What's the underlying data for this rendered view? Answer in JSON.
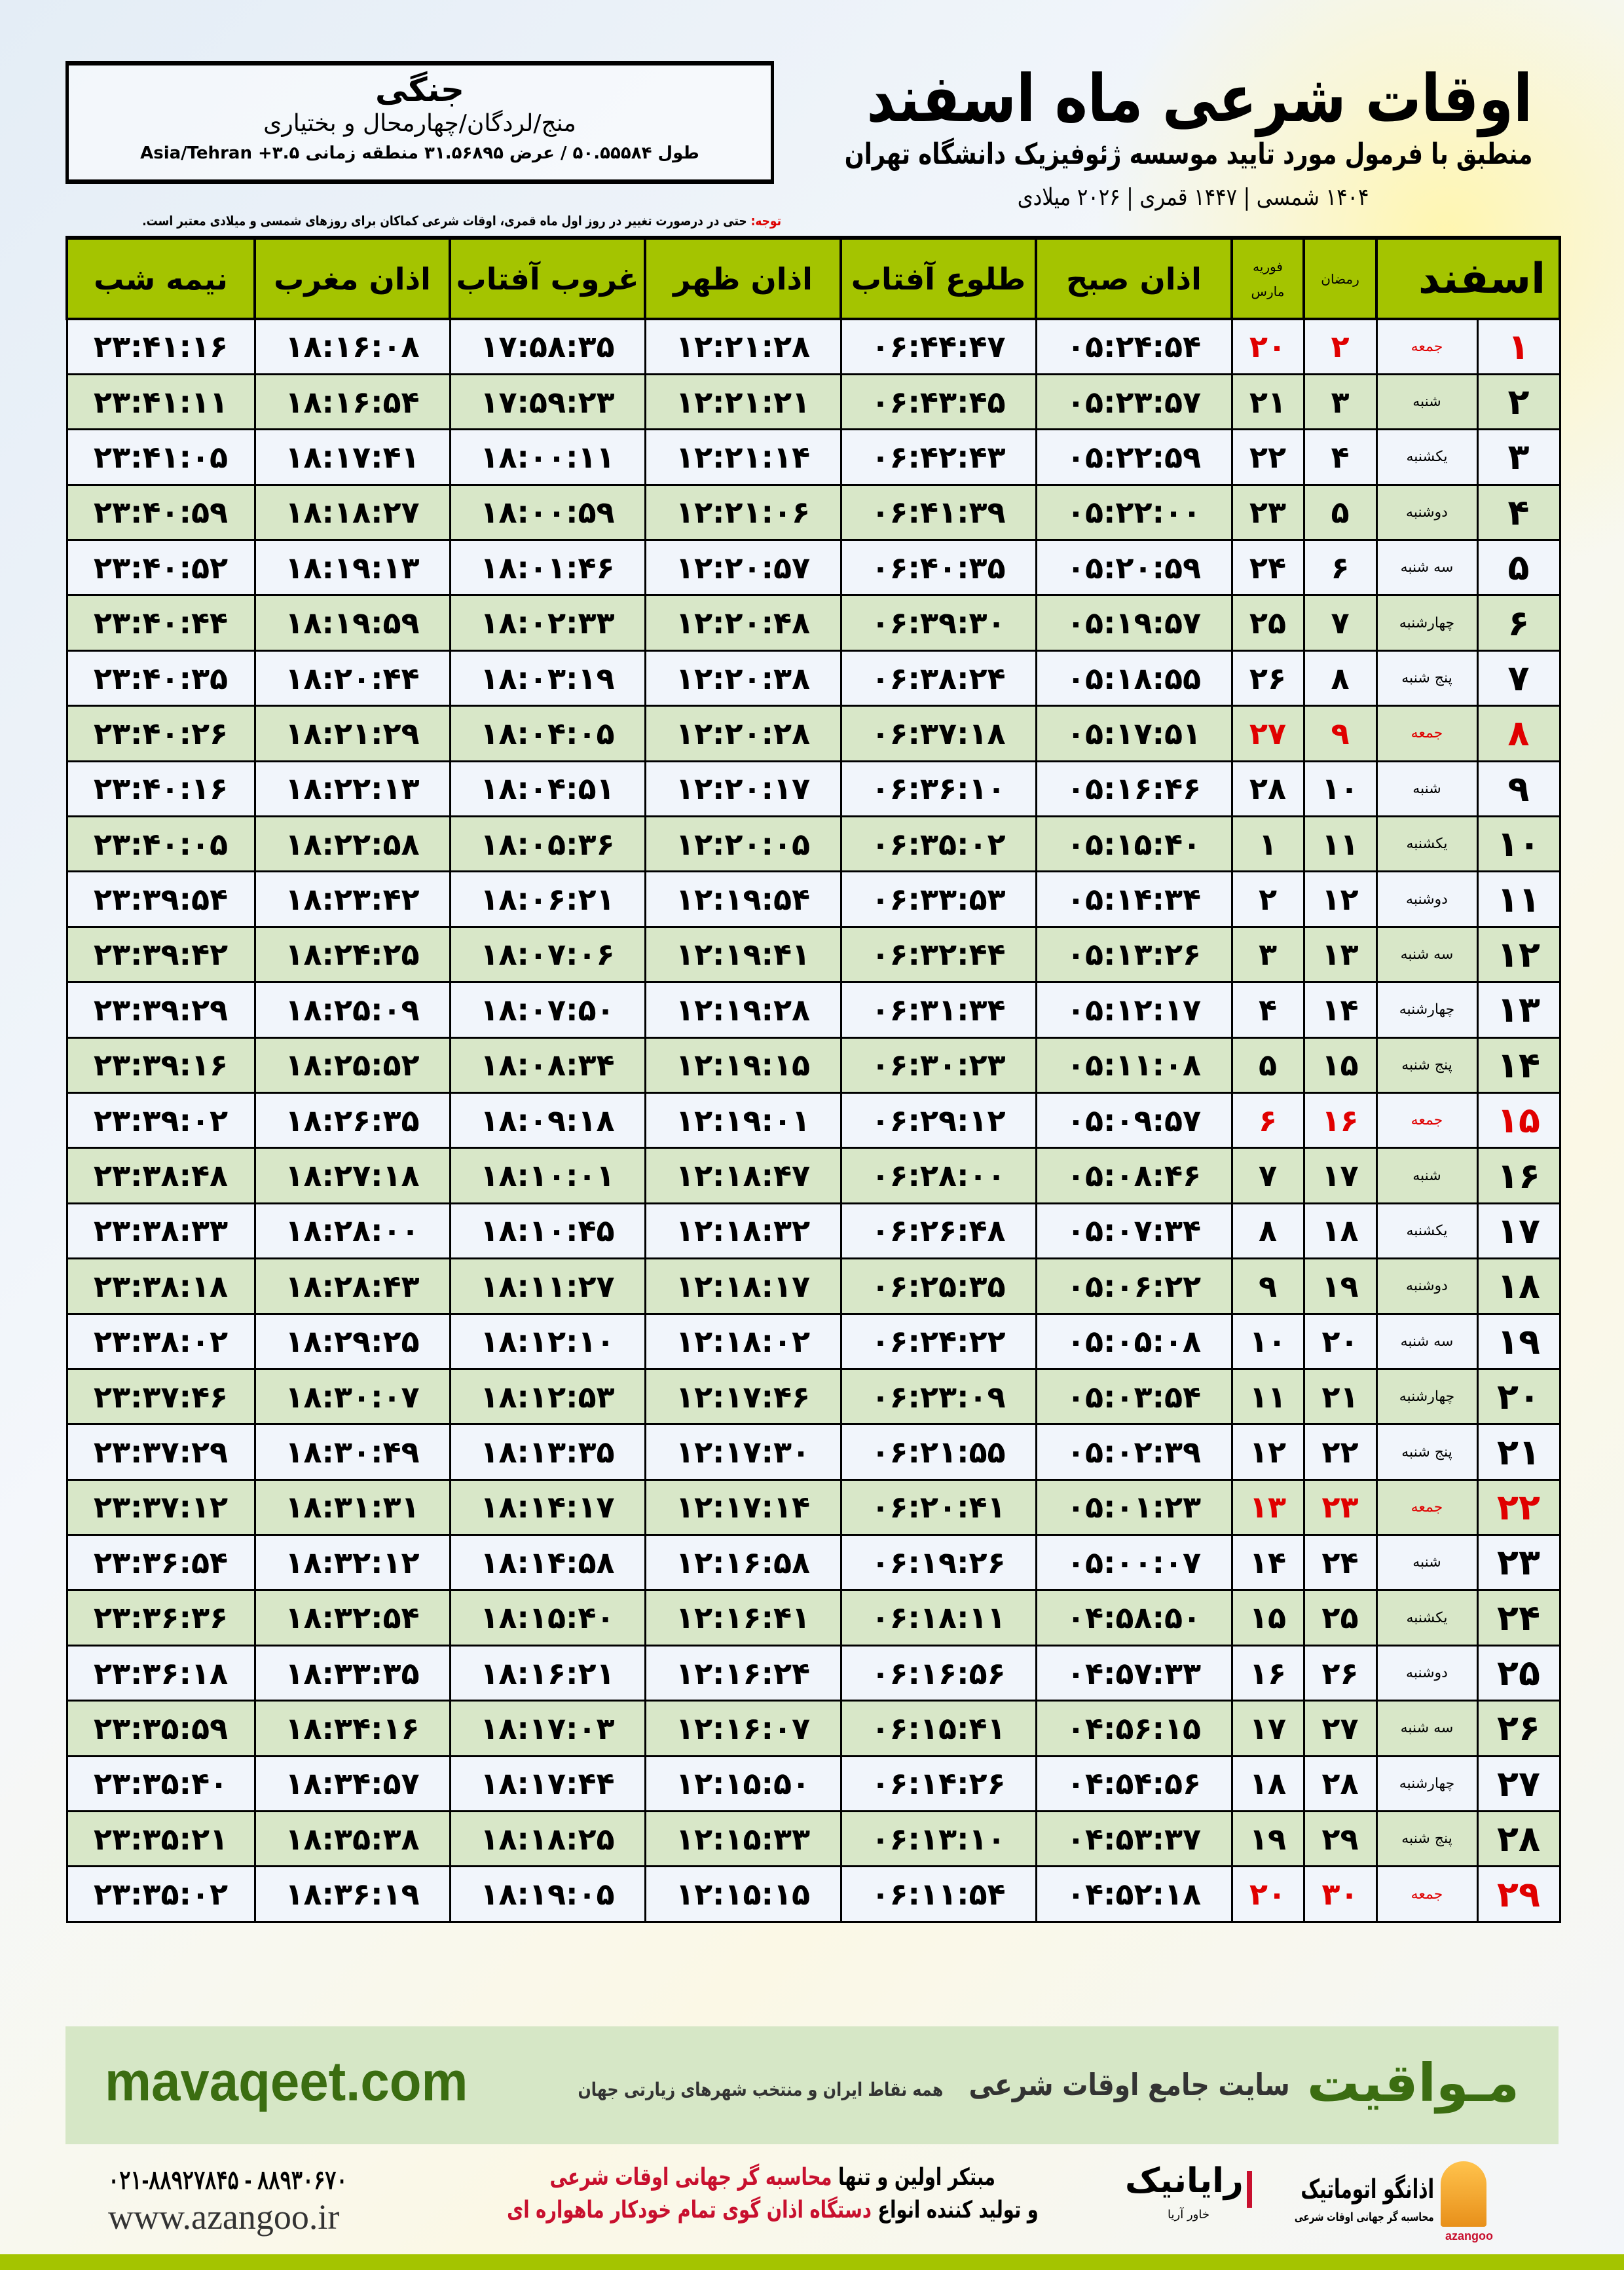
{
  "location": {
    "city": "جنگی",
    "region": "منج/لردگان/چهارمحال و بختیاری",
    "coords": "طول ۵۰.۵۵۵۸۴ / عرض ۳۱.۵۶۸۹۵ منطقه زمانی ۳.۵+ Asia/Tehran"
  },
  "header": {
    "title": "اوقات شرعی ماه اسفند",
    "subtitle": "منطبق با فرمول مورد تایید موسسه ژئوفیزیک دانشگاه تهران",
    "dates": "۱۴۰۴ شمسی | ۱۴۴۷ قمری | ۲۰۲۶ میلادی"
  },
  "note": {
    "label": "توجه:",
    "text": " حتی در درصورت تغییر در روز اول ماه قمری، اوقات شرعی کماکان برای روزهای شمسی و میلادی معتبر است."
  },
  "table": {
    "columns": {
      "month": "اسفند",
      "ramadan": "رمضان",
      "feb": "فوریه",
      "mar": "مارس",
      "sobh": "اذان صبح",
      "tolu": "طلوع آفتاب",
      "zohr": "اذان ظهر",
      "ghorub": "غروب آفتاب",
      "maghrib": "اذان مغرب",
      "nime": "نیمه شب"
    },
    "rows": [
      [
        "۱",
        "جمعه",
        "۲",
        "۲۰",
        "۰۵:۲۴:۵۴",
        "۰۶:۴۴:۴۷",
        "۱۲:۲۱:۲۸",
        "۱۷:۵۸:۳۵",
        "۱۸:۱۶:۰۸",
        "۲۳:۴۱:۱۶"
      ],
      [
        "۲",
        "شنبه",
        "۳",
        "۲۱",
        "۰۵:۲۳:۵۷",
        "۰۶:۴۳:۴۵",
        "۱۲:۲۱:۲۱",
        "۱۷:۵۹:۲۳",
        "۱۸:۱۶:۵۴",
        "۲۳:۴۱:۱۱"
      ],
      [
        "۳",
        "یکشنبه",
        "۴",
        "۲۲",
        "۰۵:۲۲:۵۹",
        "۰۶:۴۲:۴۳",
        "۱۲:۲۱:۱۴",
        "۱۸:۰۰:۱۱",
        "۱۸:۱۷:۴۱",
        "۲۳:۴۱:۰۵"
      ],
      [
        "۴",
        "دوشنبه",
        "۵",
        "۲۳",
        "۰۵:۲۲:۰۰",
        "۰۶:۴۱:۳۹",
        "۱۲:۲۱:۰۶",
        "۱۸:۰۰:۵۹",
        "۱۸:۱۸:۲۷",
        "۲۳:۴۰:۵۹"
      ],
      [
        "۵",
        "سه شنبه",
        "۶",
        "۲۴",
        "۰۵:۲۰:۵۹",
        "۰۶:۴۰:۳۵",
        "۱۲:۲۰:۵۷",
        "۱۸:۰۱:۴۶",
        "۱۸:۱۹:۱۳",
        "۲۳:۴۰:۵۲"
      ],
      [
        "۶",
        "چهارشنبه",
        "۷",
        "۲۵",
        "۰۵:۱۹:۵۷",
        "۰۶:۳۹:۳۰",
        "۱۲:۲۰:۴۸",
        "۱۸:۰۲:۳۳",
        "۱۸:۱۹:۵۹",
        "۲۳:۴۰:۴۴"
      ],
      [
        "۷",
        "پنج شنبه",
        "۸",
        "۲۶",
        "۰۵:۱۸:۵۵",
        "۰۶:۳۸:۲۴",
        "۱۲:۲۰:۳۸",
        "۱۸:۰۳:۱۹",
        "۱۸:۲۰:۴۴",
        "۲۳:۴۰:۳۵"
      ],
      [
        "۸",
        "جمعه",
        "۹",
        "۲۷",
        "۰۵:۱۷:۵۱",
        "۰۶:۳۷:۱۸",
        "۱۲:۲۰:۲۸",
        "۱۸:۰۴:۰۵",
        "۱۸:۲۱:۲۹",
        "۲۳:۴۰:۲۶"
      ],
      [
        "۹",
        "شنبه",
        "۱۰",
        "۲۸",
        "۰۵:۱۶:۴۶",
        "۰۶:۳۶:۱۰",
        "۱۲:۲۰:۱۷",
        "۱۸:۰۴:۵۱",
        "۱۸:۲۲:۱۳",
        "۲۳:۴۰:۱۶"
      ],
      [
        "۱۰",
        "یکشنبه",
        "۱۱",
        "۱",
        "۰۵:۱۵:۴۰",
        "۰۶:۳۵:۰۲",
        "۱۲:۲۰:۰۵",
        "۱۸:۰۵:۳۶",
        "۱۸:۲۲:۵۸",
        "۲۳:۴۰:۰۵"
      ],
      [
        "۱۱",
        "دوشنبه",
        "۱۲",
        "۲",
        "۰۵:۱۴:۳۴",
        "۰۶:۳۳:۵۳",
        "۱۲:۱۹:۵۴",
        "۱۸:۰۶:۲۱",
        "۱۸:۲۳:۴۲",
        "۲۳:۳۹:۵۴"
      ],
      [
        "۱۲",
        "سه شنبه",
        "۱۳",
        "۳",
        "۰۵:۱۳:۲۶",
        "۰۶:۳۲:۴۴",
        "۱۲:۱۹:۴۱",
        "۱۸:۰۷:۰۶",
        "۱۸:۲۴:۲۵",
        "۲۳:۳۹:۴۲"
      ],
      [
        "۱۳",
        "چهارشنبه",
        "۱۴",
        "۴",
        "۰۵:۱۲:۱۷",
        "۰۶:۳۱:۳۴",
        "۱۲:۱۹:۲۸",
        "۱۸:۰۷:۵۰",
        "۱۸:۲۵:۰۹",
        "۲۳:۳۹:۲۹"
      ],
      [
        "۱۴",
        "پنج شنبه",
        "۱۵",
        "۵",
        "۰۵:۱۱:۰۸",
        "۰۶:۳۰:۲۳",
        "۱۲:۱۹:۱۵",
        "۱۸:۰۸:۳۴",
        "۱۸:۲۵:۵۲",
        "۲۳:۳۹:۱۶"
      ],
      [
        "۱۵",
        "جمعه",
        "۱۶",
        "۶",
        "۰۵:۰۹:۵۷",
        "۰۶:۲۹:۱۲",
        "۱۲:۱۹:۰۱",
        "۱۸:۰۹:۱۸",
        "۱۸:۲۶:۳۵",
        "۲۳:۳۹:۰۲"
      ],
      [
        "۱۶",
        "شنبه",
        "۱۷",
        "۷",
        "۰۵:۰۸:۴۶",
        "۰۶:۲۸:۰۰",
        "۱۲:۱۸:۴۷",
        "۱۸:۱۰:۰۱",
        "۱۸:۲۷:۱۸",
        "۲۳:۳۸:۴۸"
      ],
      [
        "۱۷",
        "یکشنبه",
        "۱۸",
        "۸",
        "۰۵:۰۷:۳۴",
        "۰۶:۲۶:۴۸",
        "۱۲:۱۸:۳۲",
        "۱۸:۱۰:۴۵",
        "۱۸:۲۸:۰۰",
        "۲۳:۳۸:۳۳"
      ],
      [
        "۱۸",
        "دوشنبه",
        "۱۹",
        "۹",
        "۰۵:۰۶:۲۲",
        "۰۶:۲۵:۳۵",
        "۱۲:۱۸:۱۷",
        "۱۸:۱۱:۲۷",
        "۱۸:۲۸:۴۳",
        "۲۳:۳۸:۱۸"
      ],
      [
        "۱۹",
        "سه شنبه",
        "۲۰",
        "۱۰",
        "۰۵:۰۵:۰۸",
        "۰۶:۲۴:۲۲",
        "۱۲:۱۸:۰۲",
        "۱۸:۱۲:۱۰",
        "۱۸:۲۹:۲۵",
        "۲۳:۳۸:۰۲"
      ],
      [
        "۲۰",
        "چهارشنبه",
        "۲۱",
        "۱۱",
        "۰۵:۰۳:۵۴",
        "۰۶:۲۳:۰۹",
        "۱۲:۱۷:۴۶",
        "۱۸:۱۲:۵۳",
        "۱۸:۳۰:۰۷",
        "۲۳:۳۷:۴۶"
      ],
      [
        "۲۱",
        "پنج شنبه",
        "۲۲",
        "۱۲",
        "۰۵:۰۲:۳۹",
        "۰۶:۲۱:۵۵",
        "۱۲:۱۷:۳۰",
        "۱۸:۱۳:۳۵",
        "۱۸:۳۰:۴۹",
        "۲۳:۳۷:۲۹"
      ],
      [
        "۲۲",
        "جمعه",
        "۲۳",
        "۱۳",
        "۰۵:۰۱:۲۳",
        "۰۶:۲۰:۴۱",
        "۱۲:۱۷:۱۴",
        "۱۸:۱۴:۱۷",
        "۱۸:۳۱:۳۱",
        "۲۳:۳۷:۱۲"
      ],
      [
        "۲۳",
        "شنبه",
        "۲۴",
        "۱۴",
        "۰۵:۰۰:۰۷",
        "۰۶:۱۹:۲۶",
        "۱۲:۱۶:۵۸",
        "۱۸:۱۴:۵۸",
        "۱۸:۳۲:۱۲",
        "۲۳:۳۶:۵۴"
      ],
      [
        "۲۴",
        "یکشنبه",
        "۲۵",
        "۱۵",
        "۰۴:۵۸:۵۰",
        "۰۶:۱۸:۱۱",
        "۱۲:۱۶:۴۱",
        "۱۸:۱۵:۴۰",
        "۱۸:۳۲:۵۴",
        "۲۳:۳۶:۳۶"
      ],
      [
        "۲۵",
        "دوشنبه",
        "۲۶",
        "۱۶",
        "۰۴:۵۷:۳۳",
        "۰۶:۱۶:۵۶",
        "۱۲:۱۶:۲۴",
        "۱۸:۱۶:۲۱",
        "۱۸:۳۳:۳۵",
        "۲۳:۳۶:۱۸"
      ],
      [
        "۲۶",
        "سه شنبه",
        "۲۷",
        "۱۷",
        "۰۴:۵۶:۱۵",
        "۰۶:۱۵:۴۱",
        "۱۲:۱۶:۰۷",
        "۱۸:۱۷:۰۳",
        "۱۸:۳۴:۱۶",
        "۲۳:۳۵:۵۹"
      ],
      [
        "۲۷",
        "چهارشنبه",
        "۲۸",
        "۱۸",
        "۰۴:۵۴:۵۶",
        "۰۶:۱۴:۲۶",
        "۱۲:۱۵:۵۰",
        "۱۸:۱۷:۴۴",
        "۱۸:۳۴:۵۷",
        "۲۳:۳۵:۴۰"
      ],
      [
        "۲۸",
        "پنج شنبه",
        "۲۹",
        "۱۹",
        "۰۴:۵۳:۳۷",
        "۰۶:۱۳:۱۰",
        "۱۲:۱۵:۳۳",
        "۱۸:۱۸:۲۵",
        "۱۸:۳۵:۳۸",
        "۲۳:۳۵:۲۱"
      ],
      [
        "۲۹",
        "جمعه",
        "۳۰",
        "۲۰",
        "۰۴:۵۲:۱۸",
        "۰۶:۱۱:۵۴",
        "۱۲:۱۵:۱۵",
        "۱۸:۱۹:۰۵",
        "۱۸:۳۶:۱۹",
        "۲۳:۳۵:۰۲"
      ]
    ],
    "holiday_color": "#e00000",
    "header_color": "#a4c400",
    "alt_row_color": "#d8e7c8"
  },
  "banner": {
    "brand": "مـواقیت",
    "title": "سایت جامع اوقات شرعی",
    "tagline": "همه نقاط ایران و منتخب شهرهای زیارتی جهان",
    "site": "mavaqeet.com"
  },
  "footer": {
    "phone": "۰۲۱-۸۸۹۲۷۸۴۵ - ۸۸۹۳۰۶۷۰",
    "www": "www.azangoo.ir",
    "line1_a": "مبتکر اولین و تنها ",
    "line1_b": "محاسبه گر جهانی اوقات شرعی",
    "line2_a": "و تولید کننده انواع ",
    "line2_b": "دستگاه اذان گوی تمام خودکار ماهواره ای",
    "logo_raianik": "رایانیک",
    "logo_raianik_sub": "خاور آریا",
    "logo_azangoo": "اذانگو اتوماتیک",
    "logo_azangoo_sub": "محاسبه گر جهانی اوقات شرعی",
    "logo_azangoo_en": "azangoo"
  }
}
